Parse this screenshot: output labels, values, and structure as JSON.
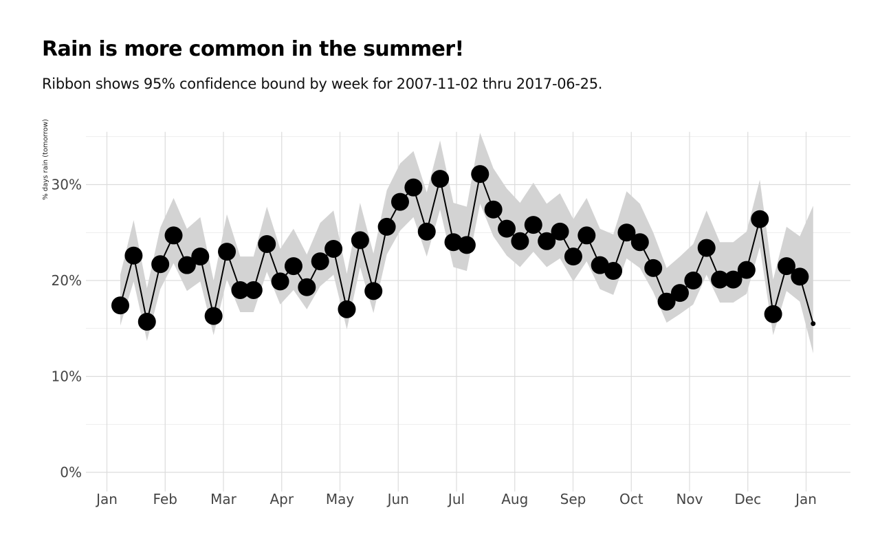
{
  "chart_data": {
    "type": "line",
    "title": "Rain is more common in the summer!",
    "subtitle": "Ribbon shows 95% confidence bound by week for 2007-11-02 thru 2017-06-25.",
    "xlabel": "",
    "ylabel": "% days rain (tomorrow)",
    "x_tick_labels": [
      "Jan",
      "Feb",
      "Mar",
      "Apr",
      "May",
      "Jun",
      "Jul",
      "Aug",
      "Sep",
      "Oct",
      "Nov",
      "Dec",
      "Jan"
    ],
    "y_ticks": [
      0,
      10,
      20,
      30
    ],
    "y_tick_labels": [
      "0%",
      "10%",
      "20%",
      "30%"
    ],
    "ylim": [
      -2,
      35.5
    ],
    "grid": true,
    "legend": "none",
    "series": [
      {
        "week": [
          1,
          2,
          3,
          4,
          5,
          6,
          7,
          8,
          9,
          10,
          11,
          12,
          13,
          14,
          15,
          16,
          17,
          18,
          19,
          20,
          21,
          22,
          23,
          24,
          25,
          26,
          27,
          28,
          29,
          30,
          31,
          32,
          33,
          34,
          35,
          36,
          37,
          38,
          39,
          40,
          41,
          42,
          43,
          44,
          45,
          46,
          47,
          48,
          49,
          50,
          51,
          52,
          53
        ],
        "values": [
          17.4,
          22.6,
          15.7,
          21.7,
          24.7,
          21.6,
          22.5,
          16.3,
          23.0,
          19.0,
          19.0,
          23.8,
          19.9,
          21.5,
          19.3,
          22.0,
          23.3,
          17.0,
          24.2,
          18.9,
          25.6,
          28.2,
          29.7,
          25.1,
          30.6,
          24.0,
          23.7,
          31.1,
          27.4,
          25.4,
          24.1,
          25.8,
          24.1,
          25.1,
          22.5,
          24.7,
          21.6,
          21.0,
          25.0,
          24.0,
          21.3,
          17.8,
          18.7,
          20.0,
          23.4,
          20.1,
          20.1,
          21.1,
          26.4,
          16.5,
          21.5,
          20.4,
          15.5
        ],
        "lower": [
          15.3,
          19.9,
          13.7,
          19.1,
          21.8,
          18.9,
          19.9,
          14.3,
          20.1,
          16.7,
          16.7,
          20.9,
          17.5,
          19.0,
          17.0,
          19.4,
          20.6,
          14.9,
          21.4,
          16.6,
          22.7,
          25.2,
          26.6,
          22.5,
          27.4,
          21.4,
          21.0,
          28.0,
          24.6,
          22.6,
          21.4,
          23.0,
          21.4,
          22.3,
          19.9,
          22.0,
          19.1,
          18.5,
          22.3,
          21.3,
          18.8,
          15.6,
          16.5,
          17.5,
          20.6,
          17.7,
          17.7,
          18.6,
          23.5,
          14.3,
          18.9,
          17.8,
          12.4
        ],
        "upper": [
          20.6,
          26.3,
          19.2,
          25.5,
          28.6,
          25.4,
          26.6,
          20.0,
          26.9,
          22.5,
          22.5,
          27.7,
          23.3,
          25.4,
          22.7,
          26.0,
          27.3,
          20.7,
          28.1,
          22.8,
          29.4,
          32.2,
          33.5,
          29.2,
          34.6,
          28.1,
          27.7,
          35.4,
          31.7,
          29.6,
          28.1,
          30.2,
          28.0,
          29.1,
          26.4,
          28.6,
          25.4,
          24.8,
          29.3,
          28.0,
          25.0,
          21.3,
          22.5,
          23.8,
          27.3,
          24.0,
          24.0,
          25.1,
          30.5,
          20.1,
          25.6,
          24.6,
          27.8
        ]
      }
    ]
  }
}
